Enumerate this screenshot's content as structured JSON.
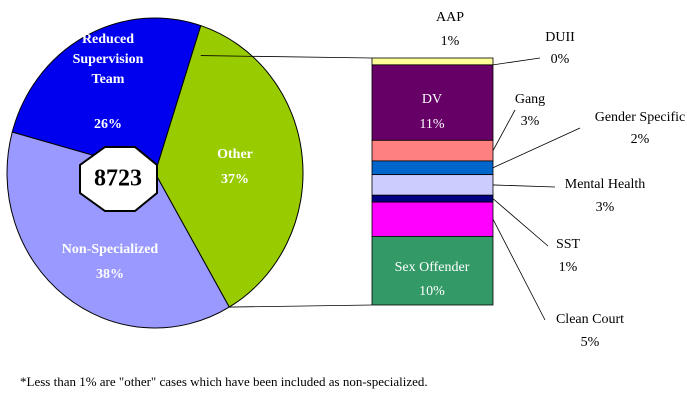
{
  "chart_data": [
    {
      "type": "pie",
      "center_label": "8723",
      "categories": [
        "Other",
        "Non-Specialized",
        "Reduced Supervision Team"
      ],
      "values": [
        37,
        38,
        26
      ],
      "value_labels": [
        "37%",
        "38%",
        "26%"
      ],
      "colors": [
        "#99cc00",
        "#9999ff",
        "#0000ee"
      ]
    },
    {
      "type": "bar",
      "stacked": true,
      "categories": [
        "AAP",
        "DUII",
        "DV",
        "Gang",
        "Gender Specific",
        "Mental Health",
        "SST",
        "Clean Court",
        "Sex Offender"
      ],
      "values": [
        1,
        0,
        11,
        3,
        2,
        3,
        1,
        5,
        10
      ],
      "value_labels": [
        "1%",
        "0%",
        "11%",
        "3%",
        "2%",
        "3%",
        "1%",
        "5%",
        "10%"
      ],
      "colors": [
        "#ffff99",
        "#ffcc99",
        "#660066",
        "#ff8080",
        "#0066cc",
        "#ccccff",
        "#000080",
        "#ff00ff",
        "#339966"
      ]
    }
  ],
  "footnote": "*Less than 1% are \"other\" cases which have been included as non-specialized."
}
